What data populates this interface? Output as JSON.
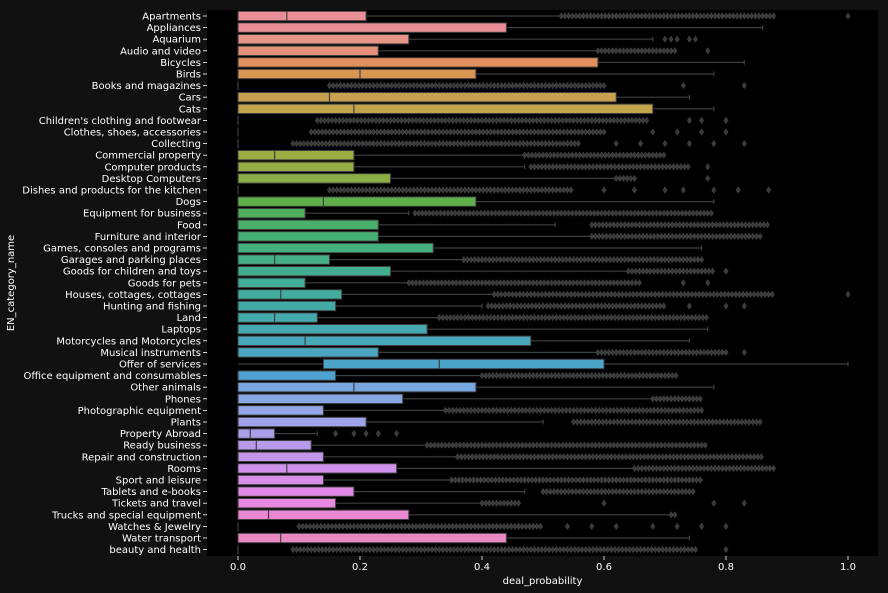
{
  "chart_data": {
    "type": "boxplot",
    "orientation": "horizontal",
    "xlabel": "deal_probability",
    "ylabel": "EN_category_name",
    "xlim": [
      -0.05,
      1.05
    ],
    "xticks": [
      0.0,
      0.2,
      0.4,
      0.6,
      0.8,
      1.0
    ],
    "xtick_labels": [
      "0.0",
      "0.2",
      "0.4",
      "0.6",
      "0.8",
      "1.0"
    ],
    "grid": false,
    "background": "#000000",
    "categories": [
      {
        "name": "Apartments",
        "q1": 0,
        "median": 0.08,
        "q3": 0.21,
        "whisker_low": 0,
        "whisker_high": 0.53,
        "outlier_ranges": [
          [
            0.53,
            0.88
          ]
        ],
        "outliers": [
          1.0
        ],
        "color": "#ea8f98"
      },
      {
        "name": "Appliances",
        "q1": 0,
        "median": 0,
        "q3": 0.44,
        "whisker_low": 0,
        "whisker_high": 0.86,
        "outlier_ranges": [],
        "outliers": [],
        "color": "#ea8f98"
      },
      {
        "name": "Aquarium",
        "q1": 0,
        "median": 0,
        "q3": 0.28,
        "whisker_low": 0,
        "whisker_high": 0.68,
        "outlier_ranges": [],
        "outliers": [
          0.7,
          0.71,
          0.72,
          0.74,
          0.75
        ],
        "color": "#e69587"
      },
      {
        "name": "Audio and video",
        "q1": 0,
        "median": 0,
        "q3": 0.23,
        "whisker_low": 0,
        "whisker_high": 0.59,
        "outlier_ranges": [
          [
            0.59,
            0.72
          ]
        ],
        "outliers": [
          0.77
        ],
        "color": "#e5917a"
      },
      {
        "name": "Bicycles",
        "q1": 0,
        "median": 0,
        "q3": 0.59,
        "whisker_low": 0,
        "whisker_high": 0.83,
        "outlier_ranges": [],
        "outliers": [],
        "color": "#e0905a"
      },
      {
        "name": "Birds",
        "q1": 0,
        "median": 0.2,
        "q3": 0.39,
        "whisker_low": 0,
        "whisker_high": 0.78,
        "outlier_ranges": [],
        "outliers": [],
        "color": "#d89652"
      },
      {
        "name": "Books and magazines",
        "q1": 0,
        "median": 0,
        "q3": 0,
        "whisker_low": 0,
        "whisker_high": 0,
        "outlier_ranges": [
          [
            0.15,
            0.6
          ]
        ],
        "outliers": [
          0.73,
          0.83
        ],
        "color": "#d2a050"
      },
      {
        "name": "Cars",
        "q1": 0,
        "median": 0.15,
        "q3": 0.62,
        "whisker_low": 0,
        "whisker_high": 0.74,
        "outlier_ranges": [],
        "outliers": [],
        "color": "#c8a14e"
      },
      {
        "name": "Cats",
        "q1": 0,
        "median": 0.19,
        "q3": 0.68,
        "whisker_low": 0,
        "whisker_high": 0.78,
        "outlier_ranges": [],
        "outliers": [],
        "color": "#c2a44c"
      },
      {
        "name": "Children's clothing and footwear",
        "q1": 0,
        "median": 0,
        "q3": 0,
        "whisker_low": 0,
        "whisker_high": 0,
        "outlier_ranges": [
          [
            0.13,
            0.67
          ]
        ],
        "outliers": [
          0.74,
          0.76,
          0.8
        ],
        "color": "#b8a64a"
      },
      {
        "name": "Clothes, shoes, accessories",
        "q1": 0,
        "median": 0,
        "q3": 0,
        "whisker_low": 0,
        "whisker_high": 0,
        "outlier_ranges": [
          [
            0.12,
            0.6
          ]
        ],
        "outliers": [
          0.68,
          0.72,
          0.76,
          0.8
        ],
        "color": "#b0a848"
      },
      {
        "name": "Collecting",
        "q1": 0,
        "median": 0,
        "q3": 0,
        "whisker_low": 0,
        "whisker_high": 0,
        "outlier_ranges": [
          [
            0.09,
            0.56
          ]
        ],
        "outliers": [
          0.62,
          0.66,
          0.7,
          0.74,
          0.78,
          0.83
        ],
        "color": "#a6a946"
      },
      {
        "name": "Commercial property",
        "q1": 0,
        "median": 0.06,
        "q3": 0.19,
        "whisker_low": 0,
        "whisker_high": 0.47,
        "outlier_ranges": [
          [
            0.47,
            0.7
          ]
        ],
        "outliers": [],
        "color": "#9cad44"
      },
      {
        "name": "Computer products",
        "q1": 0,
        "median": 0,
        "q3": 0.19,
        "whisker_low": 0,
        "whisker_high": 0.47,
        "outlier_ranges": [
          [
            0.48,
            0.74
          ]
        ],
        "outliers": [
          0.77
        ],
        "color": "#94ae44"
      },
      {
        "name": "Desktop Computers",
        "q1": 0,
        "median": 0,
        "q3": 0.25,
        "whisker_low": 0,
        "whisker_high": 0.62,
        "outlier_ranges": [
          [
            0.62,
            0.65
          ]
        ],
        "outliers": [
          0.77
        ],
        "color": "#8aae44"
      },
      {
        "name": "Dishes and products for the kitchen",
        "q1": 0,
        "median": 0,
        "q3": 0,
        "whisker_low": 0,
        "whisker_high": 0,
        "outlier_ranges": [
          [
            0.15,
            0.55
          ]
        ],
        "outliers": [
          0.6,
          0.65,
          0.7,
          0.73,
          0.78,
          0.82,
          0.87
        ],
        "color": "#80ae44"
      },
      {
        "name": "Dogs",
        "q1": 0,
        "median": 0.14,
        "q3": 0.39,
        "whisker_low": 0,
        "whisker_high": 0.78,
        "outlier_ranges": [],
        "outliers": [],
        "color": "#5fb04a"
      },
      {
        "name": "Equipment for business",
        "q1": 0,
        "median": 0,
        "q3": 0.11,
        "whisker_low": 0,
        "whisker_high": 0.28,
        "outlier_ranges": [
          [
            0.29,
            0.78
          ]
        ],
        "outliers": [],
        "color": "#4eb05a"
      },
      {
        "name": "Food",
        "q1": 0,
        "median": 0,
        "q3": 0.23,
        "whisker_low": 0,
        "whisker_high": 0.52,
        "outlier_ranges": [
          [
            0.58,
            0.87
          ]
        ],
        "outliers": [],
        "color": "#48b06a"
      },
      {
        "name": "Furniture and interior",
        "q1": 0,
        "median": 0,
        "q3": 0.23,
        "whisker_low": 0,
        "whisker_high": 0.58,
        "outlier_ranges": [
          [
            0.58,
            0.86
          ]
        ],
        "outliers": [],
        "color": "#46b074"
      },
      {
        "name": "Games, consoles and programs",
        "q1": 0,
        "median": 0,
        "q3": 0.32,
        "whisker_low": 0,
        "whisker_high": 0.76,
        "outlier_ranges": [],
        "outliers": [],
        "color": "#44b07e"
      },
      {
        "name": "Garages and parking places",
        "q1": 0,
        "median": 0.06,
        "q3": 0.15,
        "whisker_low": 0,
        "whisker_high": 0.37,
        "outlier_ranges": [
          [
            0.37,
            0.76
          ]
        ],
        "outliers": [],
        "color": "#44af86"
      },
      {
        "name": "Goods for children and toys",
        "q1": 0,
        "median": 0,
        "q3": 0.25,
        "whisker_low": 0,
        "whisker_high": 0.64,
        "outlier_ranges": [
          [
            0.64,
            0.78
          ]
        ],
        "outliers": [
          0.8
        ],
        "color": "#42ae8e"
      },
      {
        "name": "Goods for pets",
        "q1": 0,
        "median": 0,
        "q3": 0.11,
        "whisker_low": 0,
        "whisker_high": 0.28,
        "outlier_ranges": [
          [
            0.28,
            0.66
          ]
        ],
        "outliers": [
          0.73,
          0.77
        ],
        "color": "#42ad96"
      },
      {
        "name": "Houses, cottages, cottages",
        "q1": 0,
        "median": 0.07,
        "q3": 0.17,
        "whisker_low": 0,
        "whisker_high": 0.42,
        "outlier_ranges": [
          [
            0.42,
            0.88
          ]
        ],
        "outliers": [
          1.0
        ],
        "color": "#42ac9e"
      },
      {
        "name": "Hunting and fishing",
        "q1": 0,
        "median": 0,
        "q3": 0.16,
        "whisker_low": 0,
        "whisker_high": 0.4,
        "outlier_ranges": [
          [
            0.41,
            0.7
          ]
        ],
        "outliers": [
          0.74,
          0.8,
          0.83
        ],
        "color": "#42aba5"
      },
      {
        "name": "Land",
        "q1": 0,
        "median": 0.06,
        "q3": 0.13,
        "whisker_low": 0,
        "whisker_high": 0.33,
        "outlier_ranges": [
          [
            0.33,
            0.77
          ]
        ],
        "outliers": [],
        "color": "#44aaac"
      },
      {
        "name": "Laptops",
        "q1": 0,
        "median": 0,
        "q3": 0.31,
        "whisker_low": 0,
        "whisker_high": 0.77,
        "outlier_ranges": [],
        "outliers": [],
        "color": "#46a9b2"
      },
      {
        "name": "Motorcycles and Motorcycles",
        "q1": 0,
        "median": 0.11,
        "q3": 0.48,
        "whisker_low": 0,
        "whisker_high": 0.74,
        "outlier_ranges": [],
        "outliers": [],
        "color": "#48a8b9"
      },
      {
        "name": "Musical instruments",
        "q1": 0,
        "median": 0,
        "q3": 0.23,
        "whisker_low": 0,
        "whisker_high": 0.59,
        "outlier_ranges": [
          [
            0.59,
            0.8
          ]
        ],
        "outliers": [
          0.83
        ],
        "color": "#4aa6c0"
      },
      {
        "name": "Offer of services",
        "q1": 0.14,
        "median": 0.33,
        "q3": 0.6,
        "whisker_low": 0,
        "whisker_high": 1.0,
        "outlier_ranges": [],
        "outliers": [],
        "color": "#4ca4c8"
      },
      {
        "name": "Office equipment and consumables",
        "q1": 0,
        "median": 0,
        "q3": 0.16,
        "whisker_low": 0,
        "whisker_high": 0.4,
        "outlier_ranges": [
          [
            0.4,
            0.72
          ]
        ],
        "outliers": [],
        "color": "#4ea2d2"
      },
      {
        "name": "Other animals",
        "q1": 0,
        "median": 0.19,
        "q3": 0.39,
        "whisker_low": 0,
        "whisker_high": 0.78,
        "outlier_ranges": [],
        "outliers": [],
        "color": "#78a6e0"
      },
      {
        "name": "Phones",
        "q1": 0,
        "median": 0,
        "q3": 0.27,
        "whisker_low": 0,
        "whisker_high": 0.68,
        "outlier_ranges": [
          [
            0.68,
            0.76
          ]
        ],
        "outliers": [],
        "color": "#86a6e4"
      },
      {
        "name": "Photographic equipment",
        "q1": 0,
        "median": 0,
        "q3": 0.14,
        "whisker_low": 0,
        "whisker_high": 0.34,
        "outlier_ranges": [
          [
            0.34,
            0.76
          ]
        ],
        "outliers": [],
        "color": "#94a6e8"
      },
      {
        "name": "Plants",
        "q1": 0,
        "median": 0,
        "q3": 0.21,
        "whisker_low": 0,
        "whisker_high": 0.5,
        "outlier_ranges": [
          [
            0.55,
            0.86
          ]
        ],
        "outliers": [],
        "color": "#a0a2ea"
      },
      {
        "name": "Property Abroad",
        "q1": 0,
        "median": 0.02,
        "q3": 0.06,
        "whisker_low": 0,
        "whisker_high": 0.13,
        "outlier_ranges": [],
        "outliers": [
          0.16,
          0.19,
          0.21,
          0.23,
          0.26
        ],
        "color": "#aa9eea"
      },
      {
        "name": "Ready business",
        "q1": 0,
        "median": 0.03,
        "q3": 0.12,
        "whisker_low": 0,
        "whisker_high": 0.31,
        "outlier_ranges": [
          [
            0.31,
            0.77
          ]
        ],
        "outliers": [],
        "color": "#b89aea"
      },
      {
        "name": "Repair and construction",
        "q1": 0,
        "median": 0,
        "q3": 0.14,
        "whisker_low": 0,
        "whisker_high": 0.36,
        "outlier_ranges": [
          [
            0.36,
            0.86
          ]
        ],
        "outliers": [],
        "color": "#c496ea"
      },
      {
        "name": "Rooms",
        "q1": 0,
        "median": 0.08,
        "q3": 0.26,
        "whisker_low": 0,
        "whisker_high": 0.65,
        "outlier_ranges": [
          [
            0.65,
            0.88
          ]
        ],
        "outliers": [],
        "color": "#d092ea"
      },
      {
        "name": "Sport and leisure",
        "q1": 0,
        "median": 0,
        "q3": 0.14,
        "whisker_low": 0,
        "whisker_high": 0.35,
        "outlier_ranges": [
          [
            0.35,
            0.76
          ]
        ],
        "outliers": [],
        "color": "#da8eea"
      },
      {
        "name": "Tablets and e-books",
        "q1": 0,
        "median": 0,
        "q3": 0.19,
        "whisker_low": 0,
        "whisker_high": 0.47,
        "outlier_ranges": [
          [
            0.5,
            0.75
          ]
        ],
        "outliers": [],
        "color": "#e28ae8"
      },
      {
        "name": "Tickets and travel",
        "q1": 0,
        "median": 0,
        "q3": 0.16,
        "whisker_low": 0,
        "whisker_high": 0.4,
        "outlier_ranges": [
          [
            0.4,
            0.46
          ]
        ],
        "outliers": [
          0.6,
          0.78,
          0.83
        ],
        "color": "#e888e0"
      },
      {
        "name": "Trucks and special equipment",
        "q1": 0,
        "median": 0.05,
        "q3": 0.28,
        "whisker_low": 0,
        "whisker_high": 0.71,
        "outlier_ranges": [
          [
            0.71,
            0.72
          ]
        ],
        "outliers": [],
        "color": "#ea88d6"
      },
      {
        "name": "Watches & Jewelry",
        "q1": 0,
        "median": 0,
        "q3": 0,
        "whisker_low": 0,
        "whisker_high": 0,
        "outlier_ranges": [
          [
            0.1,
            0.5
          ]
        ],
        "outliers": [
          0.54,
          0.58,
          0.62,
          0.68,
          0.72,
          0.76,
          0.8
        ],
        "color": "#ea88cc"
      },
      {
        "name": "Water transport",
        "q1": 0,
        "median": 0.07,
        "q3": 0.44,
        "whisker_low": 0,
        "whisker_high": 0.74,
        "outlier_ranges": [],
        "outliers": [],
        "color": "#ea88c2"
      },
      {
        "name": "beauty and health",
        "q1": 0,
        "median": 0,
        "q3": 0,
        "whisker_low": 0,
        "whisker_high": 0,
        "outlier_ranges": [
          [
            0.09,
            0.75
          ]
        ],
        "outliers": [
          0.8
        ],
        "color": "#ea8ab6"
      }
    ]
  }
}
